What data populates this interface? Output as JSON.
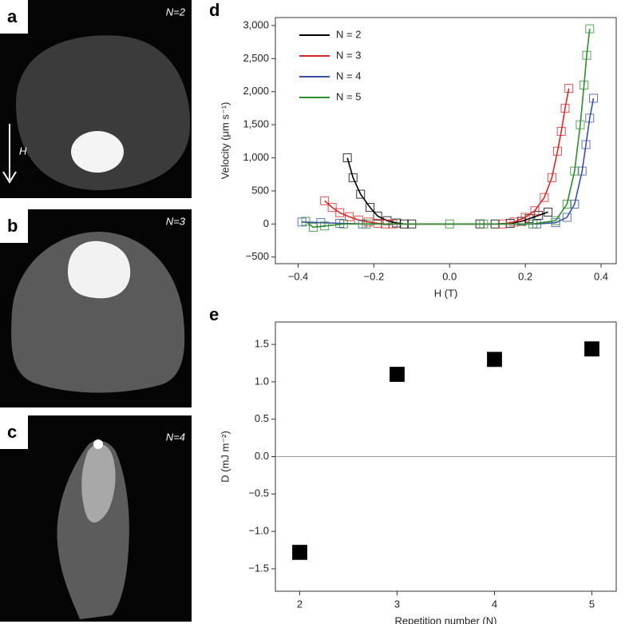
{
  "panels": [
    {
      "letter": "a",
      "label": "N=2",
      "arrow_label": "H"
    },
    {
      "letter": "b",
      "label": "N=3"
    },
    {
      "letter": "c",
      "label": "N=4"
    }
  ],
  "chart_data": [
    {
      "type": "scatter",
      "label": "d",
      "lines": true,
      "marker": "open-square",
      "xlabel": "H (T)",
      "ylabel": "Velocity (μm s⁻¹)",
      "legend": "upper left",
      "xlim": [
        -0.46,
        0.44
      ],
      "ylim": [
        -600,
        3120
      ],
      "xticks": [
        {
          "value": -0.4,
          "label": "−0.4"
        },
        {
          "value": -0.2,
          "label": "−0.2"
        },
        {
          "value": 0,
          "label": "0.0"
        },
        0.2,
        0.4
      ],
      "yticks": [
        {
          "value": -500,
          "label": "−500"
        },
        0,
        500,
        {
          "value": 1000,
          "label": "1,000"
        },
        {
          "value": 1500,
          "label": "1,500"
        },
        {
          "value": 2000,
          "label": "2,000"
        },
        {
          "value": 2500,
          "label": "2,500"
        },
        {
          "value": 3000,
          "label": "3,000"
        }
      ],
      "series": [
        {
          "name": "N = 2",
          "color": "#000000",
          "x": [
            -0.27,
            -0.255,
            -0.235,
            -0.21,
            -0.19,
            -0.165,
            -0.14,
            -0.12,
            -0.1,
            0.08,
            0.12,
            0.16,
            0.19,
            0.21,
            0.235,
            0.26
          ],
          "values": [
            1000,
            700,
            450,
            250,
            120,
            50,
            15,
            0,
            0,
            0,
            0,
            10,
            40,
            80,
            130,
            180
          ]
        },
        {
          "name": "N = 3",
          "color": "#d62728",
          "x": [
            -0.33,
            -0.31,
            -0.29,
            -0.265,
            -0.24,
            -0.215,
            -0.19,
            -0.17,
            -0.15,
            0.14,
            0.17,
            0.2,
            0.225,
            0.25,
            0.27,
            0.285,
            0.295,
            0.305,
            0.315
          ],
          "values": [
            350,
            250,
            170,
            110,
            60,
            30,
            10,
            0,
            0,
            0,
            30,
            100,
            200,
            400,
            700,
            1100,
            1400,
            1750,
            2050
          ]
        },
        {
          "name": "N = 4",
          "color": "#3a4fa8",
          "x": [
            -0.39,
            -0.34,
            -0.29,
            -0.23,
            0.23,
            0.28,
            0.31,
            0.33,
            0.35,
            0.36,
            0.37,
            0.38
          ],
          "values": [
            30,
            20,
            10,
            0,
            0,
            20,
            100,
            300,
            800,
            1200,
            1600,
            1900
          ]
        },
        {
          "name": "N = 5",
          "color": "#2e8b2e",
          "x": [
            -0.38,
            -0.36,
            -0.33,
            -0.28,
            -0.22,
            0,
            0.09,
            0.22,
            0.28,
            0.31,
            0.33,
            0.345,
            0.355,
            0.362,
            0.37
          ],
          "values": [
            40,
            -50,
            -30,
            0,
            0,
            0,
            0,
            0,
            50,
            300,
            800,
            1500,
            2100,
            2550,
            2950
          ]
        }
      ]
    },
    {
      "type": "scatter",
      "label": "e",
      "lines": false,
      "marker": "filled-square",
      "marker_color": "#000000",
      "xlabel": "Repetition number (N)",
      "ylabel": "D (mJ m⁻²)",
      "xlim": [
        1.75,
        5.25
      ],
      "ylim": [
        -1.8,
        1.8
      ],
      "xticks": [
        2,
        3,
        4,
        5
      ],
      "yticks": [
        {
          "value": -1.5,
          "label": "−1.5"
        },
        {
          "value": -1,
          "label": "−1.0"
        },
        {
          "value": -0.5,
          "label": "−0.5"
        },
        {
          "value": 0,
          "label": "0.0"
        },
        0.5,
        {
          "value": 1,
          "label": "1.0"
        },
        1.5
      ],
      "zero_line": true,
      "series": [
        {
          "name": "D",
          "x": [
            2,
            3,
            4,
            5
          ],
          "values": [
            -1.28,
            1.1,
            1.3,
            1.44
          ]
        }
      ]
    }
  ]
}
